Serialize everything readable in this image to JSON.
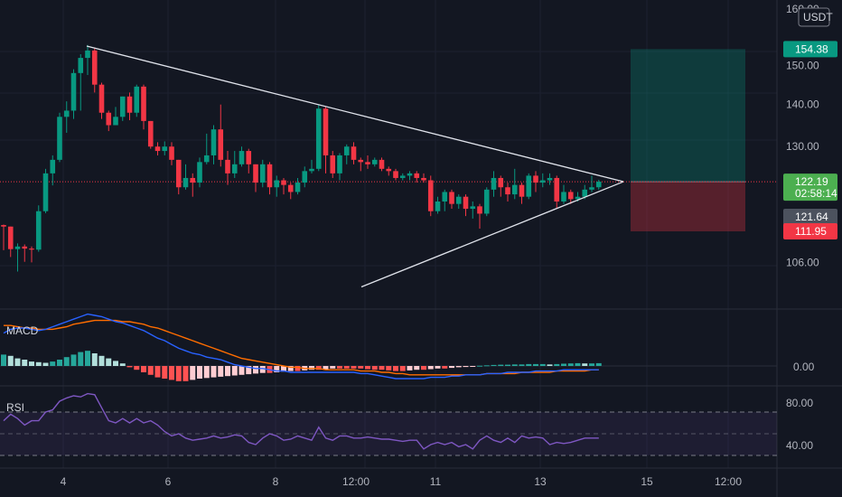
{
  "chart_data": {
    "type": "candlestick",
    "symbol_quote": "USDT",
    "price_axis": {
      "scale": "log",
      "range": [
        100,
        160
      ],
      "ticks": [
        "106.00",
        "120.00",
        "130.00",
        "140.00",
        "150.00"
      ],
      "top_tick_partial": "160.00"
    },
    "time_axis": {
      "ticks": [
        "4",
        "6",
        "8",
        "12:00",
        "11",
        "13",
        "15",
        "12:00"
      ]
    },
    "price_labels": [
      {
        "value": 154.38,
        "text": "154.38",
        "color": "#089981"
      },
      {
        "value": 122.19,
        "text": "122.19",
        "sub": "02:58:14",
        "color": "#4caf50"
      },
      {
        "value": 121.64,
        "text": "121.64",
        "color": "#4c525e"
      },
      {
        "value": 111.95,
        "text": "111.95",
        "color": "#f23645"
      }
    ],
    "position_tool": {
      "entry": 122.19,
      "target": 154.38,
      "stop": 111.95
    },
    "trendlines": [
      {
        "from": [
          96,
          155.2
        ],
        "to": [
          690,
          122.2
        ]
      },
      {
        "from": [
          400,
          101.5
        ],
        "to": [
          690,
          122.2
        ]
      }
    ],
    "candles": [
      [
        113.2,
        112.9,
        113.3,
        108.3
      ],
      [
        112.9,
        108.5,
        112.9,
        107.0
      ],
      [
        108.5,
        109.0,
        109.6,
        104.3
      ],
      [
        109.0,
        108.6,
        109.4,
        106.1
      ],
      [
        108.6,
        108.4,
        109.0,
        106.0
      ],
      [
        108.4,
        116.0,
        117.2,
        108.0
      ],
      [
        116.0,
        124.0,
        125.0,
        115.6
      ],
      [
        124.0,
        127.0,
        128.0,
        121.4
      ],
      [
        127.0,
        137.0,
        138.0,
        126.5
      ],
      [
        137.0,
        138.5,
        140.8,
        133.2
      ],
      [
        138.5,
        148.0,
        149.0,
        136.5
      ],
      [
        148.0,
        152.0,
        153.0,
        138.5
      ],
      [
        152.0,
        154.0,
        155.5,
        147.5
      ],
      [
        154.0,
        145.0,
        154.8,
        143.0
      ],
      [
        145.0,
        138.0,
        145.5,
        136.5
      ],
      [
        138.0,
        135.0,
        138.5,
        133.6
      ],
      [
        135.0,
        137.0,
        139.4,
        135.0
      ],
      [
        137.0,
        142.0,
        142.0,
        136.0
      ],
      [
        142.0,
        138.0,
        143.0,
        136.2
      ],
      [
        138.0,
        144.5,
        145.0,
        137.0
      ],
      [
        144.5,
        136.0,
        145.0,
        134.0
      ],
      [
        136.0,
        130.0,
        136.0,
        129.5
      ],
      [
        130.0,
        129.0,
        131.0,
        128.0
      ],
      [
        129.0,
        130.0,
        131.2,
        128.0
      ],
      [
        130.0,
        127.0,
        131.0,
        125.8
      ],
      [
        127.0,
        121.0,
        127.0,
        119.5
      ],
      [
        121.0,
        123.0,
        126.0,
        120.5
      ],
      [
        123.0,
        122.0,
        124.0,
        119.0
      ],
      [
        122.0,
        126.5,
        127.5,
        121.0
      ],
      [
        126.5,
        128.0,
        133.0,
        126.0
      ],
      [
        128.0,
        134.0,
        135.0,
        126.0
      ],
      [
        134.0,
        127.0,
        140.0,
        125.5
      ],
      [
        127.0,
        124.0,
        129.0,
        121.5
      ],
      [
        124.0,
        126.0,
        129.0,
        123.0
      ],
      [
        126.0,
        129.0,
        130.0,
        125.5
      ],
      [
        129.0,
        126.0,
        129.5,
        124.0
      ],
      [
        126.0,
        122.0,
        126.0,
        120.0
      ],
      [
        122.0,
        126.0,
        127.0,
        121.0
      ],
      [
        126.0,
        121.0,
        126.5,
        119.5
      ],
      [
        121.0,
        122.5,
        123.5,
        119.0
      ],
      [
        122.5,
        121.5,
        123.0,
        119.5
      ],
      [
        121.5,
        120.0,
        122.0,
        118.5
      ],
      [
        120.0,
        122.0,
        123.0,
        119.5
      ],
      [
        122.0,
        124.5,
        125.5,
        121.0
      ],
      [
        124.5,
        125.0,
        127.0,
        124.0
      ],
      [
        125.0,
        139.0,
        140.0,
        124.5
      ],
      [
        139.0,
        128.0,
        139.5,
        124.0
      ],
      [
        128.0,
        124.0,
        129.0,
        123.0
      ],
      [
        124.0,
        128.0,
        128.5,
        122.5
      ],
      [
        128.0,
        130.0,
        130.5,
        126.0
      ],
      [
        130.0,
        127.0,
        131.0,
        126.0
      ],
      [
        127.0,
        126.5,
        127.5,
        124.5
      ],
      [
        126.5,
        126.0,
        128.0,
        125.0
      ],
      [
        126.0,
        127.0,
        127.5,
        125.5
      ],
      [
        127.0,
        125.0,
        127.5,
        124.5
      ],
      [
        125.0,
        124.5,
        125.5,
        123.5
      ],
      [
        124.5,
        123.0,
        125.0,
        122.5
      ],
      [
        123.0,
        123.5,
        124.0,
        122.5
      ],
      [
        123.5,
        124.0,
        124.5,
        122.5
      ],
      [
        124.0,
        123.0,
        124.5,
        122.0
      ],
      [
        123.0,
        122.5,
        124.0,
        122.0
      ],
      [
        122.5,
        116.0,
        123.5,
        115.0
      ],
      [
        116.0,
        118.0,
        119.0,
        115.5
      ],
      [
        118.0,
        120.0,
        120.5,
        116.0
      ],
      [
        120.0,
        117.5,
        120.5,
        116.5
      ],
      [
        117.5,
        119.0,
        119.5,
        116.5
      ],
      [
        119.0,
        116.5,
        119.5,
        115.0
      ],
      [
        116.5,
        117.0,
        118.0,
        114.5
      ],
      [
        117.0,
        115.5,
        117.5,
        112.5
      ],
      [
        115.5,
        120.5,
        121.0,
        115.0
      ],
      [
        120.5,
        123.0,
        124.5,
        119.0
      ],
      [
        123.0,
        121.0,
        123.5,
        119.0
      ],
      [
        121.0,
        119.5,
        122.0,
        118.0
      ],
      [
        119.5,
        121.5,
        125.0,
        118.5
      ],
      [
        121.5,
        119.0,
        122.0,
        117.5
      ],
      [
        119.0,
        123.5,
        124.0,
        118.5
      ],
      [
        123.5,
        122.0,
        124.5,
        120.0
      ],
      [
        122.0,
        122.5,
        124.0,
        121.0
      ],
      [
        122.5,
        123.0,
        124.0,
        121.5
      ],
      [
        123.0,
        118.0,
        123.5,
        116.5
      ],
      [
        118.0,
        120.0,
        121.5,
        117.5
      ],
      [
        120.0,
        118.5,
        120.5,
        117.5
      ],
      [
        118.5,
        119.0,
        120.0,
        118.0
      ],
      [
        119.0,
        120.5,
        121.5,
        118.5
      ],
      [
        120.5,
        121.0,
        123.5,
        120.0
      ],
      [
        121.0,
        122.2,
        122.6,
        120.5
      ]
    ],
    "macd": {
      "label": "MACD",
      "ticks": [
        "0.00"
      ],
      "range": [
        -2.9,
        4.2
      ],
      "macd_line": [
        2.6,
        2.9,
        3.0,
        3.0,
        2.9,
        2.8,
        2.9,
        3.1,
        3.3,
        3.5,
        3.7,
        3.9,
        4.1,
        4.0,
        3.9,
        3.7,
        3.5,
        3.4,
        3.2,
        3.0,
        2.8,
        2.5,
        2.2,
        2.0,
        1.7,
        1.4,
        1.2,
        1.0,
        0.9,
        0.7,
        0.6,
        0.5,
        0.3,
        0.1,
        0.0,
        -0.1,
        -0.2,
        -0.2,
        -0.3,
        -0.4,
        -0.4,
        -0.5,
        -0.5,
        -0.5,
        -0.5,
        -0.5,
        -0.5,
        -0.5,
        -0.5,
        -0.5,
        -0.5,
        -0.6,
        -0.6,
        -0.7,
        -0.8,
        -0.9,
        -1.0,
        -1.0,
        -1.0,
        -1.0,
        -1.0,
        -0.9,
        -0.9,
        -0.9,
        -0.8,
        -0.8,
        -0.7,
        -0.7,
        -0.7,
        -0.6,
        -0.6,
        -0.6,
        -0.5,
        -0.5,
        -0.5,
        -0.5,
        -0.4,
        -0.4,
        -0.4,
        -0.4,
        -0.3,
        -0.3,
        -0.3,
        -0.3,
        -0.3,
        -0.3
      ],
      "signal_line": [
        3.2,
        3.2,
        3.1,
        3.0,
        3.0,
        2.9,
        2.9,
        2.9,
        3.0,
        3.1,
        3.3,
        3.4,
        3.5,
        3.6,
        3.6,
        3.6,
        3.6,
        3.5,
        3.5,
        3.4,
        3.3,
        3.1,
        3.0,
        2.8,
        2.6,
        2.4,
        2.2,
        2.0,
        1.8,
        1.6,
        1.4,
        1.2,
        1.0,
        0.8,
        0.6,
        0.5,
        0.4,
        0.3,
        0.2,
        0.1,
        0.0,
        -0.1,
        -0.1,
        -0.2,
        -0.2,
        -0.2,
        -0.3,
        -0.3,
        -0.3,
        -0.3,
        -0.3,
        -0.4,
        -0.4,
        -0.4,
        -0.5,
        -0.5,
        -0.6,
        -0.6,
        -0.7,
        -0.7,
        -0.7,
        -0.7,
        -0.7,
        -0.7,
        -0.7,
        -0.7,
        -0.7,
        -0.7,
        -0.7,
        -0.6,
        -0.6,
        -0.6,
        -0.6,
        -0.6,
        -0.5,
        -0.5,
        -0.5,
        -0.5,
        -0.5,
        -0.4,
        -0.4,
        -0.4,
        -0.4,
        -0.4,
        -0.3,
        -0.3
      ],
      "histogram": [
        0.9,
        0.8,
        0.6,
        0.5,
        0.35,
        0.3,
        0.25,
        0.35,
        0.5,
        0.7,
        0.9,
        1.1,
        1.2,
        1.0,
        0.8,
        0.6,
        0.4,
        0.2,
        -0.1,
        -0.3,
        -0.5,
        -0.7,
        -0.9,
        -1.0,
        -1.1,
        -1.2,
        -1.2,
        -1.1,
        -1.0,
        -0.95,
        -0.9,
        -0.85,
        -0.8,
        -0.75,
        -0.7,
        -0.65,
        -0.6,
        -0.55,
        -0.55,
        -0.5,
        -0.45,
        -0.4,
        -0.4,
        -0.35,
        -0.3,
        -0.3,
        -0.25,
        -0.2,
        -0.2,
        -0.2,
        -0.2,
        -0.2,
        -0.25,
        -0.3,
        -0.3,
        -0.35,
        -0.4,
        -0.4,
        -0.35,
        -0.3,
        -0.3,
        -0.25,
        -0.2,
        -0.2,
        -0.15,
        -0.1,
        -0.08,
        -0.05,
        0.02,
        0.05,
        0.08,
        0.1,
        0.1,
        0.12,
        0.12,
        0.15,
        0.15,
        0.15,
        0.12,
        0.15,
        0.18,
        0.2,
        0.22,
        0.2,
        0.2,
        0.22
      ]
    },
    "rsi": {
      "label": "RSI",
      "ticks": [
        "80.00",
        "40.00"
      ],
      "band": [
        30,
        70
      ],
      "range": [
        20,
        95
      ],
      "values": [
        62,
        68,
        64,
        58,
        62,
        62,
        70,
        72,
        80,
        83,
        85,
        84,
        87,
        86,
        74,
        62,
        60,
        64,
        60,
        64,
        60,
        62,
        58,
        52,
        48,
        50,
        46,
        44,
        45,
        46,
        48,
        46,
        47,
        49,
        48,
        42,
        40,
        46,
        50,
        48,
        44,
        45,
        48,
        46,
        44,
        56,
        46,
        44,
        48,
        48,
        46,
        46,
        47,
        46,
        45,
        45,
        44,
        43,
        44,
        44,
        36,
        40,
        42,
        40,
        42,
        38,
        40,
        36,
        44,
        48,
        44,
        42,
        46,
        42,
        48,
        46,
        47,
        46,
        40,
        42,
        41,
        42,
        44,
        46,
        46,
        46
      ]
    }
  }
}
